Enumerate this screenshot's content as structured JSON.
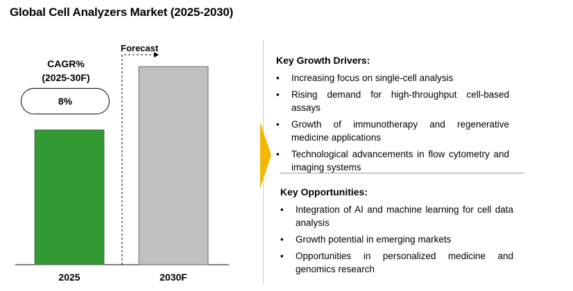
{
  "title": "Global Cell Analyzers Market (2025-2030)",
  "cagr": {
    "label_line1": "CAGR%",
    "label_line2": "(2025-30F)",
    "value": "8%"
  },
  "forecast_label": "Forecast",
  "chart_data": {
    "type": "bar",
    "categories": [
      "2025",
      "2030F"
    ],
    "values": [
      1.0,
      1.47
    ],
    "colors": [
      "#339933",
      "#c0c0c0"
    ]
  },
  "drivers": {
    "heading": "Key Growth Drivers:",
    "items": [
      "Increasing focus on single-cell analysis",
      "Rising demand for high-throughput cell-based assays",
      "Growth of immunotherapy and regenerative medicine applications",
      "Technological advancements in flow cytometry and imaging systems"
    ]
  },
  "opportunities": {
    "heading": "Key Opportunities:",
    "items": [
      "Integration of AI and machine learning for cell data analysis",
      "Growth potential in emerging markets",
      "Opportunities in personalized medicine and genomics research"
    ]
  },
  "colors": {
    "arrow": "#f5b800",
    "bar_2025": "#339933",
    "bar_2030": "#c0c0c0"
  }
}
